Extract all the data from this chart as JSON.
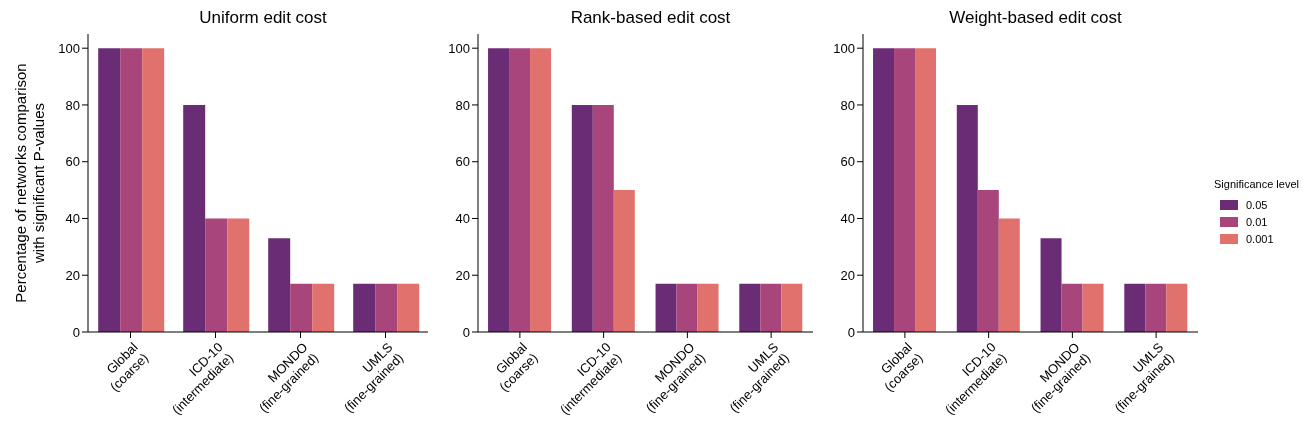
{
  "chart_data": [
    {
      "type": "bar",
      "title": "Uniform edit cost",
      "ylabel": "Percentage of networks comparison\nwith significant P-values",
      "categories": [
        "Global\n(coarse)",
        "ICD-10\n(intermediate)",
        "MONDO\n(fine-grained)",
        "UMLS\n(fine-grained)"
      ],
      "ylim": [
        0,
        105
      ],
      "yticks": [
        0,
        20,
        40,
        60,
        80,
        100
      ],
      "grid": false,
      "legend": "right",
      "legend_title": "Significance level",
      "series": [
        {
          "name": "0.05",
          "color": "#6a2c74",
          "values": [
            100,
            80,
            33,
            17
          ]
        },
        {
          "name": "0.01",
          "color": "#a8457a",
          "values": [
            100,
            40,
            17,
            17
          ]
        },
        {
          "name": "0.001",
          "color": "#e0716c",
          "values": [
            100,
            40,
            17,
            17
          ]
        }
      ]
    },
    {
      "type": "bar",
      "title": "Rank-based edit cost",
      "categories": [
        "Global\n(coarse)",
        "ICD-10\n(intermediate)",
        "MONDO\n(fine-grained)",
        "UMLS\n(fine-grained)"
      ],
      "ylim": [
        0,
        105
      ],
      "yticks": [
        0,
        20,
        40,
        60,
        80,
        100
      ],
      "grid": false,
      "legend": false,
      "series": [
        {
          "name": "0.05",
          "color": "#6a2c74",
          "values": [
            100,
            80,
            17,
            17
          ]
        },
        {
          "name": "0.01",
          "color": "#a8457a",
          "values": [
            100,
            80,
            17,
            17
          ]
        },
        {
          "name": "0.001",
          "color": "#e0716c",
          "values": [
            100,
            50,
            17,
            17
          ]
        }
      ]
    },
    {
      "type": "bar",
      "title": "Weight-based edit cost",
      "categories": [
        "Global\n(coarse)",
        "ICD-10\n(intermediate)",
        "MONDO\n(fine-grained)",
        "UMLS\n(fine-grained)"
      ],
      "ylim": [
        0,
        105
      ],
      "yticks": [
        0,
        20,
        40,
        60,
        80,
        100
      ],
      "grid": false,
      "legend": false,
      "series": [
        {
          "name": "0.05",
          "color": "#6a2c74",
          "values": [
            100,
            80,
            33,
            17
          ]
        },
        {
          "name": "0.01",
          "color": "#a8457a",
          "values": [
            100,
            50,
            17,
            17
          ]
        },
        {
          "name": "0.001",
          "color": "#e0716c",
          "values": [
            100,
            40,
            17,
            17
          ]
        }
      ]
    }
  ]
}
